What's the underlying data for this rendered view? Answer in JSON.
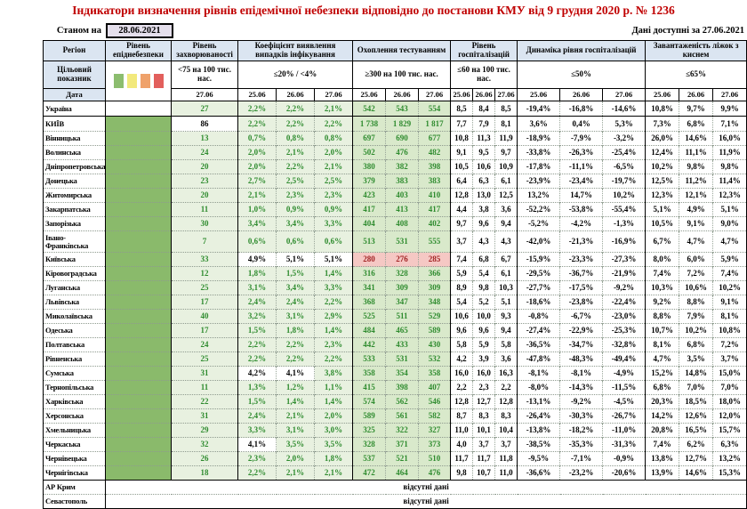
{
  "title": "Індикатори визначення рівнів епідемічної небезпеки відповідно до постанови КМУ від 9 грудня 2020 р. № 1236",
  "meta": {
    "as_of_label": "Станом на",
    "as_of_date": "28.06.2021",
    "available_label": "Дані доступні за",
    "available_date": "27.06.2021"
  },
  "colors": {
    "title_red": "#c00000",
    "header_blue": "#dbe5f1",
    "date_box_lavender": "#e5dfec",
    "level_green": "#8aba6b",
    "ok_light_green": "#e8f1e0",
    "ok_green_text": "#2e8b2e",
    "bad_pink": "#f5c8c4",
    "bad_red_text": "#a02020",
    "legend_squares": [
      "#8cbd6f",
      "#f2e97c",
      "#efa26b",
      "#e25f5c"
    ]
  },
  "header": {
    "region": "Регіон",
    "target_row_label": "Цільовий показник",
    "date_row_label": "Дата",
    "groups": [
      {
        "id": "level",
        "label": "Рівень епіднебезпеки",
        "target": "",
        "dates": []
      },
      {
        "id": "incidence",
        "label": "Рівень захворюваності",
        "target": "<75 на 100 тис. нас.",
        "dates": [
          "27.06"
        ]
      },
      {
        "id": "detection",
        "label": "Коефіцієнт виявлення випадків інфікування",
        "target": "≤20% / <4%",
        "dates": [
          "25.06",
          "26.06",
          "27.06"
        ]
      },
      {
        "id": "testing",
        "label": "Охоплення тестуванням",
        "target": "≥300 на 100 тис. нас.",
        "dates": [
          "25.06",
          "26.06",
          "27.06"
        ]
      },
      {
        "id": "hospitalization",
        "label": "Рівень госпіталізацій",
        "target": "≤60 на 100 тис. нас.",
        "dates": [
          "25.06",
          "26.06",
          "27.06"
        ]
      },
      {
        "id": "hospitalization-dynamics",
        "label": "Динаміка рівня госпіталізацій",
        "target": "≤50%",
        "dates": [
          "25.06",
          "26.06",
          "27.06"
        ]
      },
      {
        "id": "oxygen-beds",
        "label": "Завантаженість ліжок з киснем",
        "target": "≤65%",
        "dates": [
          "25.06",
          "26.06",
          "27.06"
        ]
      }
    ]
  },
  "no_data_text": "відсутні дані",
  "chart_data": {
    "type": "table",
    "rows": [
      {
        "region": "Україна",
        "emphasis": true,
        "level_filled": false,
        "incidence": "27",
        "detection": [
          "2,2%",
          "2,2%",
          "2,1%"
        ],
        "testing": [
          "542",
          "543",
          "554"
        ],
        "hospitalization": [
          "8,5",
          "8,4",
          "8,5"
        ],
        "dynamics": [
          "-19,4%",
          "-16,8%",
          "-14,6%"
        ],
        "beds": [
          "10,8%",
          "9,7%",
          "9,9%"
        ]
      },
      {
        "region": "КИЇВ",
        "emphasis": true,
        "solid_top": true,
        "level_filled": true,
        "incidence": "86",
        "inc_ok": false,
        "detection": [
          "2,2%",
          "2,2%",
          "2,2%"
        ],
        "testing": [
          "1 738",
          "1 829",
          "1 817"
        ],
        "hospitalization": [
          "7,7",
          "7,9",
          "8,1"
        ],
        "dynamics": [
          "3,6%",
          "0,4%",
          "5,3%"
        ],
        "beds": [
          "7,3%",
          "6,8%",
          "7,1%"
        ]
      },
      {
        "region": "Вінницька",
        "level_filled": true,
        "incidence": "13",
        "detection": [
          "0,7%",
          "0,8%",
          "0,8%"
        ],
        "testing": [
          "697",
          "690",
          "677"
        ],
        "hospitalization": [
          "10,8",
          "11,3",
          "11,9"
        ],
        "dynamics": [
          "-18,9%",
          "-7,9%",
          "-3,2%"
        ],
        "beds": [
          "26,0%",
          "14,6%",
          "16,0%"
        ]
      },
      {
        "region": "Волинська",
        "level_filled": true,
        "incidence": "24",
        "detection": [
          "2,0%",
          "2,1%",
          "2,0%"
        ],
        "testing": [
          "502",
          "476",
          "482"
        ],
        "hospitalization": [
          "9,1",
          "9,5",
          "9,7"
        ],
        "dynamics": [
          "-33,8%",
          "-26,3%",
          "-25,4%"
        ],
        "beds": [
          "12,4%",
          "11,1%",
          "11,9%"
        ]
      },
      {
        "region": "Дніпропетровська",
        "level_filled": true,
        "incidence": "20",
        "detection": [
          "2,0%",
          "2,2%",
          "2,1%"
        ],
        "testing": [
          "380",
          "382",
          "398"
        ],
        "hospitalization": [
          "10,5",
          "10,6",
          "10,9"
        ],
        "dynamics": [
          "-17,8%",
          "-11,1%",
          "-6,5%"
        ],
        "beds": [
          "10,2%",
          "9,8%",
          "9,8%"
        ]
      },
      {
        "region": "Донецька",
        "level_filled": true,
        "incidence": "23",
        "detection": [
          "2,7%",
          "2,5%",
          "2,5%"
        ],
        "testing": [
          "379",
          "383",
          "383"
        ],
        "hospitalization": [
          "6,4",
          "6,3",
          "6,1"
        ],
        "dynamics": [
          "-23,9%",
          "-23,4%",
          "-19,7%"
        ],
        "beds": [
          "12,5%",
          "11,2%",
          "11,4%"
        ]
      },
      {
        "region": "Житомирська",
        "level_filled": true,
        "incidence": "20",
        "detection": [
          "2,1%",
          "2,3%",
          "2,3%"
        ],
        "testing": [
          "423",
          "403",
          "410"
        ],
        "hospitalization": [
          "12,8",
          "13,0",
          "12,5"
        ],
        "dynamics": [
          "13,2%",
          "14,7%",
          "10,2%"
        ],
        "beds": [
          "12,3%",
          "12,1%",
          "12,3%"
        ]
      },
      {
        "region": "Закарпатська",
        "level_filled": true,
        "incidence": "11",
        "detection": [
          "1,0%",
          "0,9%",
          "0,9%"
        ],
        "testing": [
          "417",
          "413",
          "417"
        ],
        "hospitalization": [
          "4,4",
          "3,8",
          "3,6"
        ],
        "dynamics": [
          "-52,2%",
          "-53,8%",
          "-55,4%"
        ],
        "beds": [
          "5,1%",
          "4,9%",
          "5,1%"
        ]
      },
      {
        "region": "Запорізька",
        "level_filled": true,
        "incidence": "30",
        "detection": [
          "3,4%",
          "3,4%",
          "3,3%"
        ],
        "testing": [
          "404",
          "408",
          "402"
        ],
        "hospitalization": [
          "9,7",
          "9,6",
          "9,4"
        ],
        "dynamics": [
          "-5,2%",
          "-4,2%",
          "-1,3%"
        ],
        "beds": [
          "10,5%",
          "9,1%",
          "9,0%"
        ]
      },
      {
        "region": "Івано-Франківська",
        "tall": true,
        "level_filled": true,
        "incidence": "7",
        "detection": [
          "0,6%",
          "0,6%",
          "0,6%"
        ],
        "testing": [
          "513",
          "531",
          "555"
        ],
        "hospitalization": [
          "3,7",
          "4,3",
          "4,3"
        ],
        "dynamics": [
          "-42,0%",
          "-21,3%",
          "-16,9%"
        ],
        "beds": [
          "6,7%",
          "4,7%",
          "4,7%"
        ]
      },
      {
        "region": "Київська",
        "level_filled": true,
        "incidence": "33",
        "detection": [
          "4,9%",
          "5,1%",
          "5,1%"
        ],
        "det_ok": [
          false,
          false,
          false
        ],
        "testing": [
          "280",
          "276",
          "285"
        ],
        "test_ok": [
          false,
          false,
          false
        ],
        "hospitalization": [
          "7,4",
          "6,8",
          "6,7"
        ],
        "dynamics": [
          "-15,9%",
          "-23,3%",
          "-27,3%"
        ],
        "beds": [
          "8,0%",
          "6,0%",
          "5,9%"
        ]
      },
      {
        "region": "Кіровоградська",
        "level_filled": true,
        "incidence": "12",
        "detection": [
          "1,8%",
          "1,5%",
          "1,4%"
        ],
        "testing": [
          "316",
          "328",
          "366"
        ],
        "hospitalization": [
          "5,9",
          "5,4",
          "6,1"
        ],
        "dynamics": [
          "-29,5%",
          "-36,7%",
          "-21,9%"
        ],
        "beds": [
          "7,4%",
          "7,2%",
          "7,4%"
        ]
      },
      {
        "region": "Луганська",
        "level_filled": true,
        "incidence": "25",
        "detection": [
          "3,1%",
          "3,4%",
          "3,3%"
        ],
        "testing": [
          "341",
          "309",
          "309"
        ],
        "hospitalization": [
          "8,9",
          "9,8",
          "10,3"
        ],
        "dynamics": [
          "-27,7%",
          "-17,5%",
          "-9,2%"
        ],
        "beds": [
          "10,3%",
          "10,6%",
          "10,2%"
        ]
      },
      {
        "region": "Львівська",
        "level_filled": true,
        "incidence": "17",
        "detection": [
          "2,4%",
          "2,4%",
          "2,2%"
        ],
        "testing": [
          "368",
          "347",
          "348"
        ],
        "hospitalization": [
          "5,4",
          "5,2",
          "5,1"
        ],
        "dynamics": [
          "-18,6%",
          "-23,8%",
          "-22,4%"
        ],
        "beds": [
          "9,2%",
          "8,8%",
          "9,1%"
        ]
      },
      {
        "region": "Миколаївська",
        "level_filled": true,
        "incidence": "40",
        "detection": [
          "3,2%",
          "3,1%",
          "2,9%"
        ],
        "testing": [
          "525",
          "511",
          "529"
        ],
        "hospitalization": [
          "10,6",
          "10,0",
          "9,3"
        ],
        "dynamics": [
          "-0,8%",
          "-6,7%",
          "-23,0%"
        ],
        "beds": [
          "8,8%",
          "7,9%",
          "8,1%"
        ]
      },
      {
        "region": "Одеська",
        "level_filled": true,
        "incidence": "17",
        "detection": [
          "1,5%",
          "1,8%",
          "1,4%"
        ],
        "testing": [
          "484",
          "465",
          "589"
        ],
        "hospitalization": [
          "9,6",
          "9,6",
          "9,4"
        ],
        "dynamics": [
          "-27,4%",
          "-22,9%",
          "-25,3%"
        ],
        "beds": [
          "10,7%",
          "10,2%",
          "10,8%"
        ]
      },
      {
        "region": "Полтавська",
        "level_filled": true,
        "incidence": "24",
        "detection": [
          "2,2%",
          "2,2%",
          "2,3%"
        ],
        "testing": [
          "442",
          "433",
          "430"
        ],
        "hospitalization": [
          "5,8",
          "5,9",
          "5,8"
        ],
        "dynamics": [
          "-36,5%",
          "-34,7%",
          "-32,8%"
        ],
        "beds": [
          "8,1%",
          "6,8%",
          "7,2%"
        ]
      },
      {
        "region": "Рівненська",
        "level_filled": true,
        "incidence": "25",
        "detection": [
          "2,2%",
          "2,2%",
          "2,2%"
        ],
        "testing": [
          "533",
          "531",
          "532"
        ],
        "hospitalization": [
          "4,2",
          "3,9",
          "3,6"
        ],
        "dynamics": [
          "-47,8%",
          "-48,3%",
          "-49,4%"
        ],
        "beds": [
          "4,7%",
          "3,5%",
          "3,7%"
        ]
      },
      {
        "region": "Сумська",
        "level_filled": true,
        "incidence": "31",
        "detection": [
          "4,2%",
          "4,1%",
          "3,8%"
        ],
        "det_ok": [
          false,
          false,
          true
        ],
        "testing": [
          "358",
          "354",
          "358"
        ],
        "hospitalization": [
          "16,0",
          "16,0",
          "16,3"
        ],
        "dynamics": [
          "-8,1%",
          "-8,1%",
          "-4,9%"
        ],
        "beds": [
          "15,2%",
          "14,8%",
          "15,0%"
        ]
      },
      {
        "region": "Тернопільська",
        "level_filled": true,
        "incidence": "11",
        "detection": [
          "1,3%",
          "1,2%",
          "1,1%"
        ],
        "testing": [
          "415",
          "398",
          "407"
        ],
        "hospitalization": [
          "2,2",
          "2,3",
          "2,2"
        ],
        "dynamics": [
          "-8,0%",
          "-14,3%",
          "-11,5%"
        ],
        "beds": [
          "6,8%",
          "7,0%",
          "7,0%"
        ]
      },
      {
        "region": "Харківська",
        "level_filled": true,
        "incidence": "22",
        "detection": [
          "1,5%",
          "1,4%",
          "1,4%"
        ],
        "testing": [
          "574",
          "562",
          "546"
        ],
        "hospitalization": [
          "12,8",
          "12,7",
          "12,8"
        ],
        "dynamics": [
          "-13,1%",
          "-9,2%",
          "-4,5%"
        ],
        "beds": [
          "20,3%",
          "18,5%",
          "18,0%"
        ]
      },
      {
        "region": "Херсонська",
        "level_filled": true,
        "incidence": "31",
        "detection": [
          "2,4%",
          "2,1%",
          "2,0%"
        ],
        "testing": [
          "589",
          "561",
          "582"
        ],
        "hospitalization": [
          "8,7",
          "8,3",
          "8,3"
        ],
        "dynamics": [
          "-26,4%",
          "-30,3%",
          "-26,7%"
        ],
        "beds": [
          "14,2%",
          "12,6%",
          "12,0%"
        ]
      },
      {
        "region": "Хмельницька",
        "level_filled": true,
        "incidence": "29",
        "detection": [
          "3,3%",
          "3,1%",
          "3,0%"
        ],
        "testing": [
          "325",
          "322",
          "327"
        ],
        "hospitalization": [
          "11,0",
          "10,1",
          "10,4"
        ],
        "dynamics": [
          "-13,8%",
          "-18,2%",
          "-11,0%"
        ],
        "beds": [
          "20,8%",
          "16,5%",
          "15,7%"
        ]
      },
      {
        "region": "Черкаська",
        "level_filled": true,
        "incidence": "32",
        "detection": [
          "4,1%",
          "3,5%",
          "3,5%"
        ],
        "det_ok": [
          false,
          true,
          true
        ],
        "testing": [
          "328",
          "371",
          "373"
        ],
        "hospitalization": [
          "4,0",
          "3,7",
          "3,7"
        ],
        "dynamics": [
          "-38,5%",
          "-35,3%",
          "-31,3%"
        ],
        "beds": [
          "7,4%",
          "6,2%",
          "6,3%"
        ]
      },
      {
        "region": "Чернівецька",
        "level_filled": true,
        "incidence": "26",
        "detection": [
          "2,3%",
          "2,0%",
          "1,8%"
        ],
        "testing": [
          "537",
          "521",
          "510"
        ],
        "hospitalization": [
          "11,7",
          "11,7",
          "11,8"
        ],
        "dynamics": [
          "-9,5%",
          "-7,1%",
          "-0,9%"
        ],
        "beds": [
          "13,8%",
          "12,7%",
          "13,2%"
        ]
      },
      {
        "region": "Чернігівська",
        "level_filled": true,
        "incidence": "18",
        "detection": [
          "2,2%",
          "2,1%",
          "2,1%"
        ],
        "testing": [
          "472",
          "464",
          "476"
        ],
        "hospitalization": [
          "9,8",
          "10,7",
          "11,0"
        ],
        "dynamics": [
          "-36,6%",
          "-23,2%",
          "-20,6%"
        ],
        "beds": [
          "13,9%",
          "14,6%",
          "15,3%"
        ]
      },
      {
        "region": "АР Крим",
        "solid_top": true,
        "no_data": true
      },
      {
        "region": "Севастополь",
        "no_data": true
      }
    ]
  }
}
